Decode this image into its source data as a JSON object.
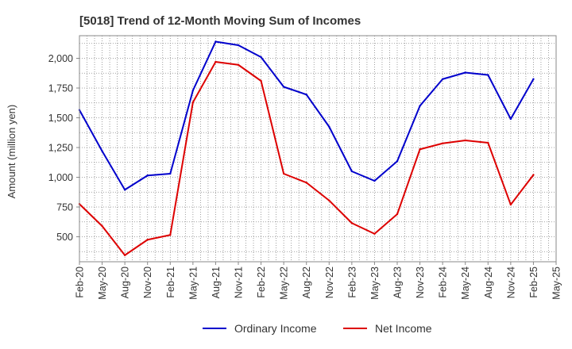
{
  "chart_data": {
    "type": "line",
    "title": "[5018]  Trend of 12-Month Moving Sum of Incomes",
    "xlabel": "",
    "ylabel": "Amount (million yen)",
    "x": [
      "Feb-20",
      "May-20",
      "Aug-20",
      "Nov-20",
      "Feb-21",
      "May-21",
      "Aug-21",
      "Nov-21",
      "Feb-22",
      "May-22",
      "Aug-22",
      "Nov-22",
      "Feb-23",
      "May-23",
      "Aug-23",
      "Nov-23",
      "Feb-24",
      "May-24",
      "Aug-24",
      "Nov-24",
      "Feb-25",
      "May-25"
    ],
    "yticks": [
      "500",
      "750",
      "1,000",
      "1,250",
      "1,500",
      "1,750",
      "2,000"
    ],
    "ytick_values": [
      500,
      750,
      1000,
      1250,
      1500,
      1750,
      2000
    ],
    "ylim": [
      290,
      2190
    ],
    "grid": true,
    "legend_position": "bottom-center",
    "series": [
      {
        "name": "Ordinary Income",
        "color": "#0000cc",
        "values": [
          1565,
          1220,
          895,
          1015,
          1030,
          1730,
          2140,
          2110,
          2010,
          1760,
          1695,
          1425,
          1050,
          970,
          1135,
          1600,
          1825,
          1880,
          1860,
          1490,
          1825,
          null
        ]
      },
      {
        "name": "Net Income",
        "color": "#dd0000",
        "values": [
          775,
          590,
          345,
          475,
          515,
          1630,
          1970,
          1945,
          1810,
          1030,
          955,
          805,
          615,
          525,
          690,
          1235,
          1285,
          1310,
          1290,
          770,
          1020,
          null
        ]
      }
    ]
  }
}
